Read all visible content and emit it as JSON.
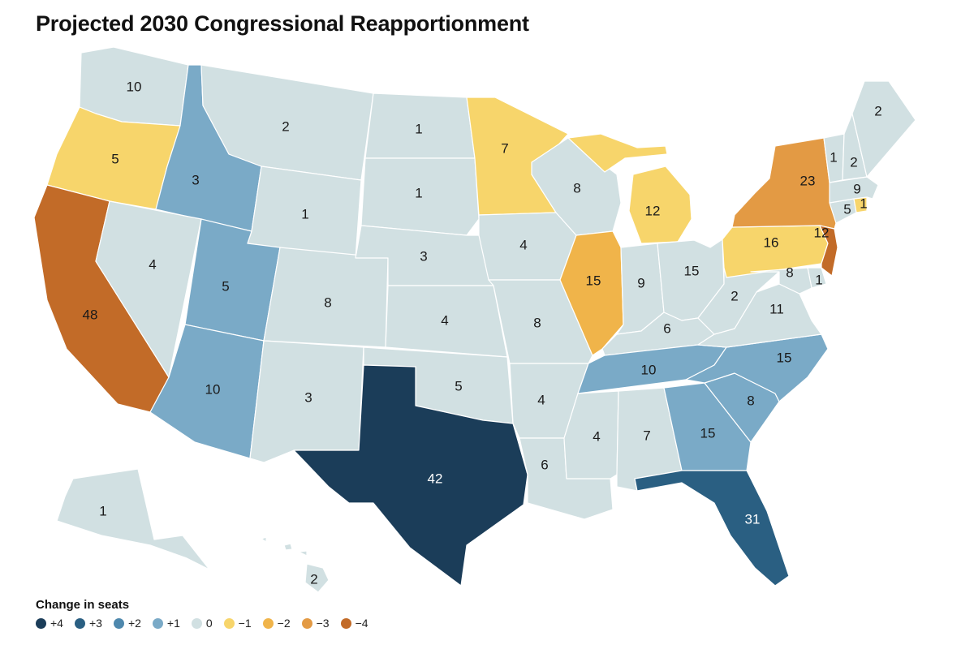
{
  "title": "Projected 2030 Congressional Reapportionment",
  "legend": {
    "title": "Change in seats",
    "items": [
      {
        "label": "+4",
        "change": 4,
        "color": "#1b3d59"
      },
      {
        "label": "+3",
        "change": 3,
        "color": "#2a5f82"
      },
      {
        "label": "+2",
        "change": 2,
        "color": "#4e88ad"
      },
      {
        "label": "+1",
        "change": 1,
        "color": "#7aaac7"
      },
      {
        "label": "0",
        "change": 0,
        "color": "#d1e0e2"
      },
      {
        "label": "−1",
        "change": -1,
        "color": "#f7d56b"
      },
      {
        "label": "−2",
        "change": -2,
        "color": "#f0b44a"
      },
      {
        "label": "−3",
        "change": -3,
        "color": "#e39a44"
      },
      {
        "label": "−4",
        "change": -4,
        "color": "#c26b28"
      }
    ]
  },
  "states": [
    {
      "id": "WA",
      "seats": "10",
      "change": 0
    },
    {
      "id": "OR",
      "seats": "5",
      "change": -1
    },
    {
      "id": "CA",
      "seats": "48",
      "change": -4
    },
    {
      "id": "ID",
      "seats": "3",
      "change": 1
    },
    {
      "id": "NV",
      "seats": "4",
      "change": 0
    },
    {
      "id": "MT",
      "seats": "2",
      "change": 0
    },
    {
      "id": "WY",
      "seats": "1",
      "change": 0
    },
    {
      "id": "UT",
      "seats": "5",
      "change": 1
    },
    {
      "id": "AZ",
      "seats": "10",
      "change": 1
    },
    {
      "id": "CO",
      "seats": "8",
      "change": 0
    },
    {
      "id": "NM",
      "seats": "3",
      "change": 0
    },
    {
      "id": "ND",
      "seats": "1",
      "change": 0
    },
    {
      "id": "SD",
      "seats": "1",
      "change": 0
    },
    {
      "id": "NE",
      "seats": "3",
      "change": 0
    },
    {
      "id": "KS",
      "seats": "4",
      "change": 0
    },
    {
      "id": "OK",
      "seats": "5",
      "change": 0
    },
    {
      "id": "TX",
      "seats": "42",
      "change": 4
    },
    {
      "id": "MN",
      "seats": "7",
      "change": -1
    },
    {
      "id": "IA",
      "seats": "4",
      "change": 0
    },
    {
      "id": "MO",
      "seats": "8",
      "change": 0
    },
    {
      "id": "AR",
      "seats": "4",
      "change": 0
    },
    {
      "id": "LA",
      "seats": "6",
      "change": 0
    },
    {
      "id": "WI",
      "seats": "8",
      "change": 0
    },
    {
      "id": "IL",
      "seats": "15",
      "change": -2
    },
    {
      "id": "MI",
      "seats": "12",
      "change": -1
    },
    {
      "id": "IN",
      "seats": "9",
      "change": 0
    },
    {
      "id": "OH",
      "seats": "15",
      "change": 0
    },
    {
      "id": "KY",
      "seats": "6",
      "change": 0
    },
    {
      "id": "TN",
      "seats": "10",
      "change": 1
    },
    {
      "id": "MS",
      "seats": "4",
      "change": 0
    },
    {
      "id": "AL",
      "seats": "7",
      "change": 0
    },
    {
      "id": "GA",
      "seats": "15",
      "change": 1
    },
    {
      "id": "FL",
      "seats": "31",
      "change": 3
    },
    {
      "id": "SC",
      "seats": "8",
      "change": 1
    },
    {
      "id": "NC",
      "seats": "15",
      "change": 1
    },
    {
      "id": "VA",
      "seats": "11",
      "change": 0
    },
    {
      "id": "WV",
      "seats": "2",
      "change": 0
    },
    {
      "id": "PA",
      "seats": "16",
      "change": -1
    },
    {
      "id": "NY",
      "seats": "23",
      "change": -3
    },
    {
      "id": "NJ",
      "seats": "12",
      "change": -4
    },
    {
      "id": "DE",
      "seats": "1",
      "change": 0
    },
    {
      "id": "MD",
      "seats": "8",
      "change": 0
    },
    {
      "id": "CT",
      "seats": "5",
      "change": 0
    },
    {
      "id": "RI",
      "seats": "1",
      "change": -1
    },
    {
      "id": "MA",
      "seats": "9",
      "change": 0
    },
    {
      "id": "VT",
      "seats": "1",
      "change": 0
    },
    {
      "id": "NH",
      "seats": "2",
      "change": 0
    },
    {
      "id": "ME",
      "seats": "2",
      "change": 0
    },
    {
      "id": "AK",
      "seats": "1",
      "change": 0
    },
    {
      "id": "HI",
      "seats": "2",
      "change": 0
    }
  ]
}
